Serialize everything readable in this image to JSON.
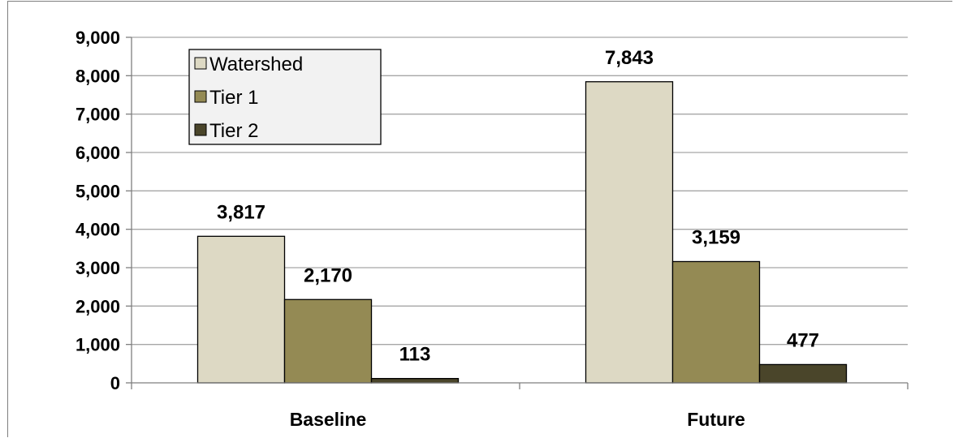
{
  "chart_data": {
    "type": "bar",
    "title": "",
    "xlabel": "",
    "ylabel": "",
    "categories": [
      "Baseline",
      "Future"
    ],
    "series": [
      {
        "name": "Watershed",
        "values": [
          3817,
          7843
        ],
        "labels": [
          "3,817",
          "7,843"
        ],
        "color": "#ddd9c4"
      },
      {
        "name": "Tier 1",
        "values": [
          2170,
          3159
        ],
        "labels": [
          "2,170",
          "3,159"
        ],
        "color": "#948a54"
      },
      {
        "name": "Tier 2",
        "values": [
          113,
          477
        ],
        "labels": [
          "113",
          "477"
        ],
        "color": "#4a452a"
      }
    ],
    "ylim": [
      0,
      9000
    ],
    "yticks": [
      0,
      1000,
      2000,
      3000,
      4000,
      5000,
      6000,
      7000,
      8000,
      9000
    ],
    "ytick_labels": [
      "0",
      "1,000",
      "2,000",
      "3,000",
      "4,000",
      "5,000",
      "6,000",
      "7,000",
      "8,000",
      "9,000"
    ],
    "grid": true,
    "legend": "top-left"
  }
}
